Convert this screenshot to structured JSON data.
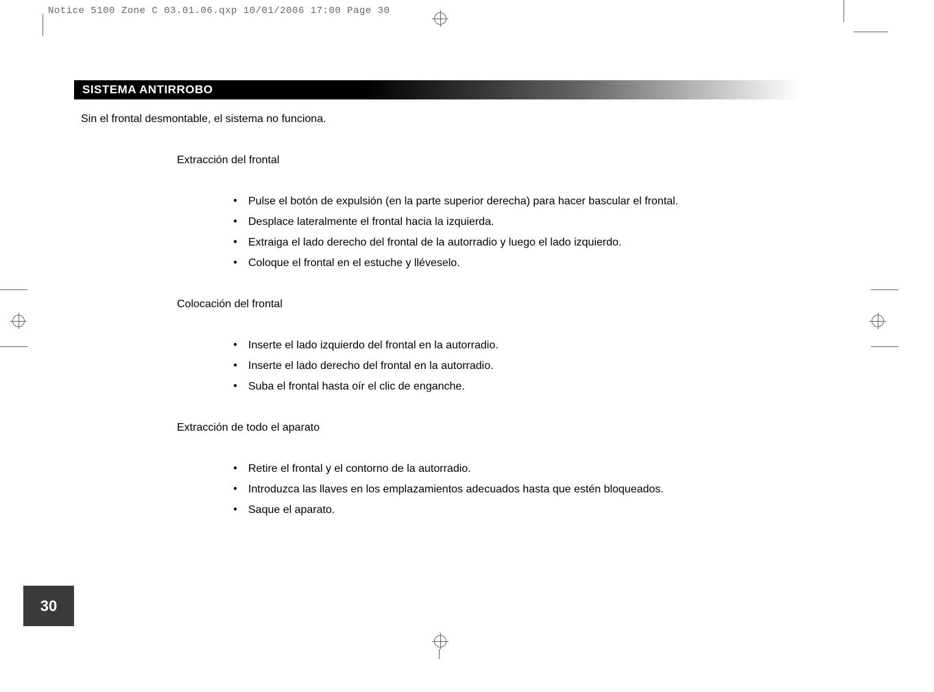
{
  "meta": {
    "header_text": "Notice 5100 Zone C 03.01.06.qxp  10/01/2006  17:00  Page 30",
    "page_number": "30"
  },
  "section": {
    "title": "SISTEMA ANTIRROBO",
    "intro": "Sin el frontal desmontable, el sistema no funciona."
  },
  "subsection1": {
    "title": "Extracción del frontal",
    "items": [
      "Pulse el botón de expulsión (en la parte superior derecha) para hacer bascular el frontal.",
      "Desplace lateralmente el frontal hacia la izquierda.",
      "Extraiga el lado derecho del frontal de la autorradio y luego el lado izquierdo.",
      "Coloque el frontal en el estuche y lléveselo."
    ]
  },
  "subsection2": {
    "title": "Colocación del frontal",
    "items": [
      "Inserte el lado izquierdo del frontal en la autorradio.",
      "Inserte el lado derecho del frontal en la autorradio.",
      "Suba el frontal hasta oír el clic de enganche."
    ]
  },
  "subsection3": {
    "title": "Extracción de todo el aparato",
    "items": [
      "Retire el frontal y el contorno de la autorradio.",
      "Introduzca las llaves en los emplazamientos adecuados hasta que estén bloqueados.",
      "Saque el aparato."
    ]
  },
  "colors": {
    "header_bg_start": "#000000",
    "header_bg_end": "#ffffff",
    "page_number_bg": "#3a3a3a",
    "text_color": "#000000",
    "crop_mark_color": "#666666"
  },
  "typography": {
    "title_fontsize": 17,
    "body_fontsize": 16,
    "page_number_fontsize": 22,
    "header_monospace_fontsize": 14
  }
}
